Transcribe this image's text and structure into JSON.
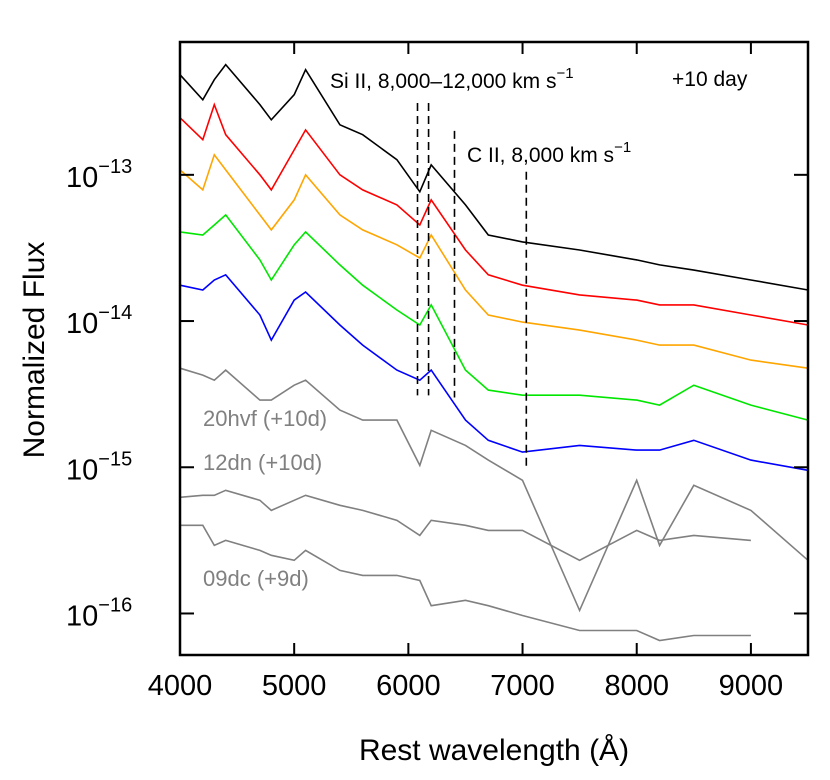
{
  "chart_data": {
    "type": "line",
    "xlabel": "Rest wavelength (Å)",
    "ylabel": "Normalized Flux",
    "yscale": "log",
    "xlim": [
      4000,
      9500
    ],
    "ylim": [
      5.2e-17,
      8.1e-13
    ],
    "xticks": [
      4000,
      5000,
      6000,
      7000,
      8000,
      9000
    ],
    "yticks": [
      {
        "value": 1e-13,
        "label": "10−13"
      },
      {
        "value": 1e-14,
        "label": "10−14"
      },
      {
        "value": 1e-15,
        "label": "10−15"
      },
      {
        "value": 1e-16,
        "label": "10−16"
      }
    ],
    "x": [
      4000,
      4200,
      4300,
      4400,
      4700,
      4800,
      5000,
      5100,
      5400,
      5600,
      5900,
      6100,
      6200,
      6500,
      6700,
      7000,
      7500,
      8000,
      8200,
      8500,
      9000,
      9500
    ],
    "series": [
      {
        "color": "#000000",
        "values": [
          4.84e-13,
          3.26e-13,
          4.47e-13,
          5.67e-13,
          3.02e-13,
          2.38e-13,
          3.53e-13,
          5.24e-13,
          2.2e-13,
          1.88e-13,
          1.27e-13,
          7.66e-14,
          1.17e-13,
          6.23e-14,
          3.88e-14,
          3.48e-14,
          3.06e-14,
          2.62e-14,
          2.42e-14,
          2.23e-14,
          1.91e-14,
          1.63e-14
        ]
      },
      {
        "color": "#ff0000",
        "values": [
          2.46e-13,
          1.74e-13,
          3.02e-13,
          1.88e-13,
          1e-13,
          7.89e-14,
          1.48e-13,
          2.03e-13,
          1e-13,
          7.89e-14,
          6.23e-14,
          4.54e-14,
          6.74e-14,
          3.06e-14,
          2.07e-14,
          1.76e-14,
          1.51e-14,
          1.39e-14,
          1.29e-14,
          1.29e-14,
          1.1e-14,
          9.39e-15
        ]
      },
      {
        "color": "#ffa500",
        "values": [
          1.08e-13,
          7.89e-14,
          1.37e-13,
          1.08e-13,
          5.32e-14,
          4.2e-14,
          6.74e-14,
          1e-13,
          5.32e-14,
          4.2e-14,
          3.32e-14,
          2.7e-14,
          3.88e-14,
          1.63e-14,
          1.1e-14,
          9.84e-15,
          8.67e-15,
          7.41e-15,
          6.85e-15,
          6.85e-15,
          5.41e-15,
          4.76e-15
        ]
      },
      {
        "color": "#00e600",
        "values": [
          4.07e-14,
          3.88e-14,
          4.54e-14,
          5.32e-14,
          2.62e-14,
          1.91e-14,
          3.32e-14,
          4.07e-14,
          2.42e-14,
          1.76e-14,
          1.19e-14,
          9.39e-15,
          1.29e-14,
          4.62e-15,
          3.37e-15,
          3.11e-15,
          3.11e-15,
          2.88e-15,
          2.66e-15,
          3.64e-15,
          2.66e-15,
          2.1e-15
        ]
      },
      {
        "color": "#0000ff",
        "values": [
          1.76e-14,
          1.63e-14,
          1.91e-14,
          2.07e-14,
          1.1e-14,
          7.41e-15,
          1.39e-14,
          1.58e-14,
          9.39e-15,
          6.85e-15,
          4.62e-15,
          3.94e-15,
          4.62e-15,
          2.1e-15,
          1.53e-15,
          1.27e-15,
          1.41e-15,
          1.31e-15,
          1.31e-15,
          1.53e-15,
          1.12e-15,
          9.54e-16
        ]
      },
      {
        "name": "20hvf (+10d)",
        "color": "#808080",
        "values": [
          4.76e-15,
          4.27e-15,
          3.94e-15,
          4.62e-15,
          2.88e-15,
          2.88e-15,
          3.64e-15,
          3.94e-15,
          2.46e-15,
          2.1e-15,
          2.1e-15,
          1.03e-15,
          1.79e-15,
          1.41e-15,
          1.12e-15,
          8.14e-16,
          1.05e-16,
          8.14e-16,
          2.92e-16,
          7.53e-16,
          5.07e-16,
          2.31e-16
        ]
      },
      {
        "name": "12dn (+10d)",
        "color": "#808080",
        "values": [
          6.23e-16,
          6.43e-16,
          6.43e-16,
          6.96e-16,
          5.94e-16,
          5.07e-16,
          5.94e-16,
          6.43e-16,
          5.49e-16,
          5.07e-16,
          4.34e-16,
          3.42e-16,
          4.34e-16,
          4.01e-16,
          3.7e-16,
          3.7e-16,
          2.31e-16,
          3.7e-16,
          3.16e-16,
          3.42e-16,
          3.16e-16,
          null
        ]
      },
      {
        "name": "09dc (+9d)",
        "color": "#808080",
        "values": [
          4.01e-16,
          4.01e-16,
          2.92e-16,
          3.16e-16,
          2.7e-16,
          2.5e-16,
          2.31e-16,
          2.7e-16,
          1.97e-16,
          1.82e-16,
          1.82e-16,
          1.68e-16,
          1.13e-16,
          1.23e-16,
          1.13e-16,
          9.69e-17,
          7.65e-17,
          7.65e-17,
          6.53e-17,
          7.07e-17,
          7.07e-17,
          null
        ]
      }
    ],
    "markers": [
      {
        "x": 6080,
        "y": [
          3.1e-13,
          3.1e-15
        ]
      },
      {
        "x": 6177,
        "y": [
          3.1e-13,
          3.1e-15
        ]
      },
      {
        "x": 6404,
        "y": [
          2e-13,
          3e-15
        ]
      },
      {
        "x": 7033,
        "y": [
          1.05e-13,
          9.5e-16
        ]
      }
    ],
    "annotations": [
      {
        "text": "Si II, 8,000–12,000 km s",
        "sup": "−1"
      },
      {
        "text": "+10 day"
      },
      {
        "text": "C II, 8,000 km s",
        "sup": "−1"
      }
    ]
  }
}
